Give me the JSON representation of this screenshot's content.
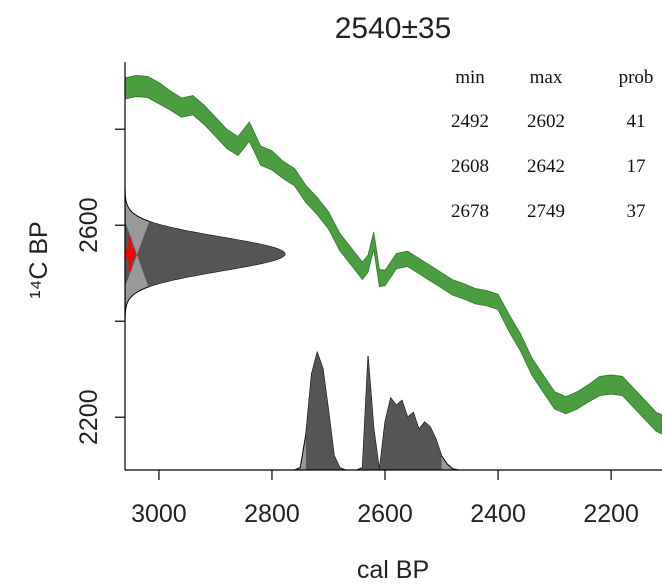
{
  "chart_data": {
    "type": "area",
    "title": "2540±35",
    "xlabel": "cal BP",
    "ylabel": "¹⁴C BP",
    "x_reversed": true,
    "xlim": [
      3060,
      2110
    ],
    "ylim": [
      2090,
      2940
    ],
    "x_ticks": [
      3000,
      2800,
      2600,
      2400,
      2200
    ],
    "y_ticks": [
      2200,
      2400,
      2600,
      2800
    ],
    "y_tick_labels_shown": [
      2200,
      2600
    ],
    "colors": {
      "calibration_curve": "#4a9e3f",
      "calibration_curve_edge": "#2f7a2a",
      "radiocarbon_distribution": "#555555",
      "radiocarbon_distribution_light": "#999999",
      "calibrated_distribution": "#555555",
      "calibrated_distribution_light": "#999999",
      "measurement_marker": "#ff0000"
    },
    "measurement": {
      "c14_age": 2540,
      "error": 35
    },
    "calibration_curve": {
      "x": [
        3060,
        3040,
        3020,
        3000,
        2980,
        2960,
        2940,
        2920,
        2900,
        2880,
        2860,
        2840,
        2820,
        2800,
        2780,
        2760,
        2740,
        2720,
        2700,
        2680,
        2660,
        2640,
        2630,
        2620,
        2610,
        2600,
        2580,
        2560,
        2540,
        2520,
        2500,
        2480,
        2460,
        2440,
        2420,
        2400,
        2380,
        2360,
        2340,
        2320,
        2300,
        2280,
        2260,
        2240,
        2220,
        2200,
        2180,
        2160,
        2140,
        2120,
        2110
      ],
      "mean": [
        2885,
        2890,
        2888,
        2875,
        2860,
        2845,
        2850,
        2830,
        2805,
        2780,
        2765,
        2795,
        2745,
        2735,
        2715,
        2700,
        2665,
        2640,
        2610,
        2565,
        2535,
        2505,
        2520,
        2568,
        2490,
        2490,
        2525,
        2530,
        2515,
        2500,
        2485,
        2470,
        2462,
        2452,
        2448,
        2440,
        2395,
        2355,
        2305,
        2270,
        2235,
        2225,
        2235,
        2250,
        2265,
        2268,
        2265,
        2240,
        2215,
        2190,
        2185
      ],
      "sd": [
        22,
        22,
        22,
        22,
        20,
        20,
        20,
        20,
        20,
        20,
        20,
        20,
        20,
        20,
        18,
        18,
        18,
        18,
        18,
        18,
        18,
        18,
        18,
        18,
        18,
        16,
        16,
        16,
        16,
        16,
        16,
        16,
        16,
        16,
        16,
        16,
        18,
        18,
        18,
        18,
        18,
        18,
        18,
        18,
        20,
        20,
        20,
        20,
        20,
        20,
        20
      ]
    },
    "calibrated_ranges": {
      "columns": [
        "min",
        "max",
        "prob"
      ],
      "rows": [
        [
          2492,
          2602,
          41
        ],
        [
          2608,
          2642,
          17
        ],
        [
          2678,
          2749,
          37
        ]
      ]
    },
    "calibrated_distribution": {
      "x": [
        2760,
        2750,
        2740,
        2730,
        2720,
        2710,
        2700,
        2690,
        2680,
        2670,
        2660,
        2650,
        2640,
        2630,
        2620,
        2610,
        2600,
        2590,
        2580,
        2570,
        2560,
        2550,
        2540,
        2530,
        2520,
        2510,
        2500,
        2490,
        2480,
        2470,
        2460
      ],
      "density": [
        0.0,
        0.02,
        0.3,
        0.8,
        0.98,
        0.85,
        0.5,
        0.12,
        0.02,
        0.0,
        0.0,
        0.0,
        0.02,
        0.95,
        0.35,
        0.0,
        0.4,
        0.6,
        0.54,
        0.58,
        0.44,
        0.48,
        0.34,
        0.4,
        0.36,
        0.26,
        0.12,
        0.05,
        0.01,
        0.0,
        0.0
      ]
    }
  },
  "range_table": {
    "header": {
      "min": "min",
      "max": "max",
      "prob": "prob"
    },
    "rows": [
      {
        "min": "2492",
        "max": "2602",
        "prob": "41"
      },
      {
        "min": "2608",
        "max": "2642",
        "prob": "17"
      },
      {
        "min": "2678",
        "max": "2749",
        "prob": "37"
      }
    ]
  }
}
